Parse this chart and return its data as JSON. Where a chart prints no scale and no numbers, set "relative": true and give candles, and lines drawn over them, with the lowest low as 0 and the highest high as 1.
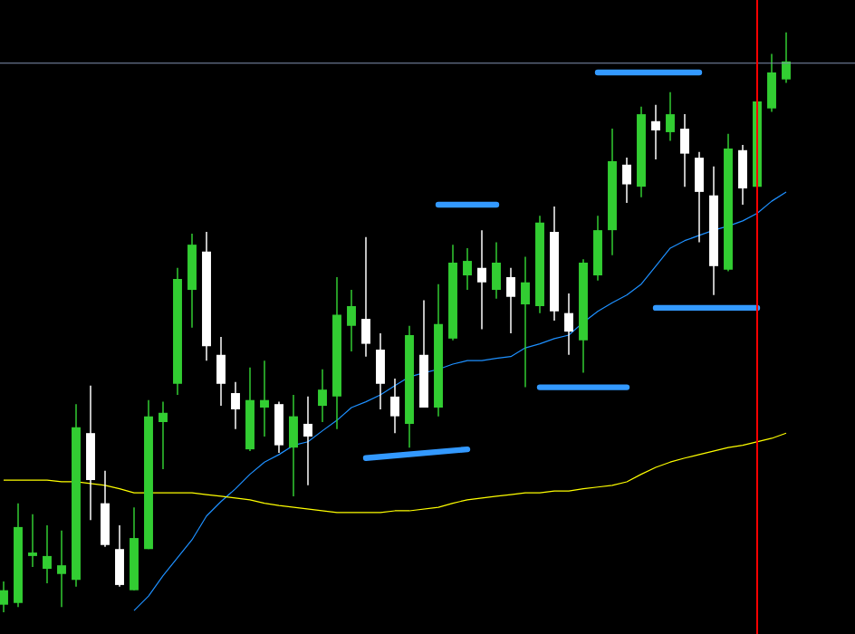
{
  "chart_data": {
    "type": "candlestick",
    "relative": true,
    "tick_labels": false,
    "categories": [
      null,
      null,
      null,
      null,
      null,
      null,
      null,
      null,
      null,
      null,
      null,
      null,
      null,
      null,
      null,
      null,
      null,
      null,
      null,
      null,
      null,
      null,
      null,
      null,
      null,
      null,
      null,
      null,
      null,
      null,
      null,
      null,
      null,
      null,
      null,
      null,
      null,
      null,
      null,
      null,
      null,
      null,
      null,
      null,
      null,
      null,
      null,
      null,
      null,
      null,
      null,
      null,
      null,
      null,
      null
    ],
    "ohlc": [
      [
        0.013,
        0.053,
        0,
        0.038
      ],
      [
        0.016,
        0.188,
        0.009,
        0.147
      ],
      [
        0.097,
        0.169,
        0.078,
        0.103
      ],
      [
        0.075,
        0.15,
        0.05,
        0.097
      ],
      [
        0.066,
        0.141,
        0.009,
        0.081
      ],
      [
        0.056,
        0.359,
        0.044,
        0.319
      ],
      [
        0.309,
        0.391,
        0.159,
        0.228
      ],
      [
        0.188,
        0.244,
        0.113,
        0.116
      ],
      [
        0.109,
        0.15,
        0.044,
        0.047
      ],
      [
        0.038,
        0.181,
        0.038,
        0.128
      ],
      [
        0.109,
        0.366,
        0.109,
        0.338
      ],
      [
        0.328,
        0.363,
        0.247,
        0.344
      ],
      [
        0.394,
        0.594,
        0.375,
        0.575
      ],
      [
        0.556,
        0.653,
        0.491,
        0.634
      ],
      [
        0.622,
        0.656,
        0.434,
        0.459
      ],
      [
        0.444,
        0.475,
        0.356,
        0.394
      ],
      [
        0.378,
        0.397,
        0.316,
        0.35
      ],
      [
        0.281,
        0.422,
        0.278,
        0.366
      ],
      [
        0.353,
        0.434,
        0.303,
        0.366
      ],
      [
        0.359,
        0.363,
        0.275,
        0.288
      ],
      [
        0.284,
        0.375,
        0.2,
        0.338
      ],
      [
        0.325,
        0.372,
        0.219,
        0.303
      ],
      [
        0.356,
        0.419,
        0.328,
        0.384
      ],
      [
        0.372,
        0.578,
        0.316,
        0.513
      ],
      [
        0.494,
        0.556,
        0.45,
        0.528
      ],
      [
        0.506,
        0.647,
        0.441,
        0.463
      ],
      [
        0.453,
        0.481,
        0.35,
        0.394
      ],
      [
        0.372,
        0.403,
        0.309,
        0.338
      ],
      [
        0.325,
        0.494,
        0.284,
        0.478
      ],
      [
        0.444,
        0.538,
        0.353,
        0.353
      ],
      [
        0.353,
        0.566,
        0.338,
        0.497
      ],
      [
        0.472,
        0.634,
        0.469,
        0.603
      ],
      [
        0.581,
        0.628,
        0.556,
        0.606
      ],
      [
        0.594,
        0.659,
        0.488,
        0.569
      ],
      [
        0.556,
        0.638,
        0.541,
        0.603
      ],
      [
        0.578,
        0.594,
        0.481,
        0.544
      ],
      [
        0.531,
        0.613,
        0.388,
        0.569
      ],
      [
        0.528,
        0.684,
        0.516,
        0.672
      ],
      [
        0.656,
        0.7,
        0.503,
        0.519
      ],
      [
        0.516,
        0.55,
        0.444,
        0.484
      ],
      [
        0.469,
        0.609,
        0.413,
        0.603
      ],
      [
        0.581,
        0.684,
        0.572,
        0.659
      ],
      [
        0.659,
        0.834,
        0.616,
        0.778
      ],
      [
        0.772,
        0.784,
        0.706,
        0.738
      ],
      [
        0.734,
        0.872,
        0.716,
        0.859
      ],
      [
        0.847,
        0.875,
        0.781,
        0.831
      ],
      [
        0.828,
        0.897,
        0.813,
        0.859
      ],
      [
        0.834,
        0.859,
        0.734,
        0.791
      ],
      [
        0.784,
        0.794,
        0.638,
        0.725
      ],
      [
        0.719,
        0.769,
        0.547,
        0.597
      ],
      [
        0.591,
        0.825,
        0.588,
        0.8
      ],
      [
        0.797,
        0.806,
        0.703,
        0.731
      ],
      [
        0.734,
        0.888,
        0.734,
        0.881
      ],
      [
        0.869,
        0.963,
        0.863,
        0.931
      ],
      [
        0.919,
        1,
        0.913,
        0.95
      ]
    ],
    "colors": [
      "#32cd32",
      "#32cd32",
      "#32cd32",
      "#32cd32",
      "#32cd32",
      "#32cd32",
      "#ffffff",
      "#ffffff",
      "#ffffff",
      "#32cd32",
      "#32cd32",
      "#32cd32",
      "#32cd32",
      "#32cd32",
      "#ffffff",
      "#ffffff",
      "#ffffff",
      "#32cd32",
      "#32cd32",
      "#ffffff",
      "#32cd32",
      "#ffffff",
      "#32cd32",
      "#32cd32",
      "#32cd32",
      "#ffffff",
      "#ffffff",
      "#ffffff",
      "#32cd32",
      "#ffffff",
      "#32cd32",
      "#32cd32",
      "#32cd32",
      "#ffffff",
      "#32cd32",
      "#ffffff",
      "#32cd32",
      "#32cd32",
      "#ffffff",
      "#ffffff",
      "#32cd32",
      "#32cd32",
      "#32cd32",
      "#ffffff",
      "#32cd32",
      "#ffffff",
      "#32cd32",
      "#ffffff",
      "#ffffff",
      "#ffffff",
      "#32cd32",
      "#ffffff",
      "#32cd32",
      "#32cd32",
      "#32cd32"
    ],
    "series": [
      {
        "type": "line",
        "color": "#1e90ff",
        "values": [
          null,
          null,
          null,
          null,
          null,
          null,
          null,
          null,
          null,
          0.003,
          0.028,
          0.063,
          0.094,
          0.125,
          0.166,
          0.191,
          0.213,
          0.238,
          0.259,
          0.272,
          0.288,
          0.294,
          0.313,
          0.331,
          0.353,
          0.363,
          0.375,
          0.391,
          0.406,
          0.413,
          0.419,
          0.428,
          0.434,
          0.434,
          0.438,
          0.441,
          0.456,
          0.463,
          0.472,
          0.478,
          0.5,
          0.519,
          0.534,
          0.547,
          0.566,
          0.597,
          0.628,
          0.641,
          0.65,
          0.659,
          0.666,
          0.675,
          0.688,
          0.709,
          0.725
        ]
      },
      {
        "type": "line",
        "color": "#ffff00",
        "values": [
          0.228,
          0.228,
          0.228,
          0.228,
          0.225,
          0.225,
          0.222,
          0.219,
          0.213,
          0.206,
          0.206,
          0.206,
          0.206,
          0.206,
          0.203,
          0.2,
          0.197,
          0.194,
          0.188,
          0.184,
          0.181,
          0.178,
          0.175,
          0.172,
          0.172,
          0.172,
          0.172,
          0.175,
          0.175,
          0.178,
          0.181,
          0.188,
          0.194,
          0.197,
          0.2,
          0.203,
          0.206,
          0.206,
          0.209,
          0.209,
          0.213,
          0.216,
          0.219,
          0.225,
          0.238,
          0.25,
          0.259,
          0.266,
          0.272,
          0.278,
          0.284,
          0.288,
          0.294,
          0.3,
          0.309
        ]
      },
      {
        "type": "line",
        "color": "#3399ff",
        "values": [
          null,
          null,
          null,
          null,
          null,
          null,
          null,
          null,
          null,
          null,
          null,
          null,
          null,
          null,
          null,
          null,
          null,
          null,
          null,
          null,
          null,
          null,
          null,
          null,
          null,
          0.266,
          null,
          null,
          null,
          null,
          null,
          null,
          0.281,
          null,
          null,
          null,
          null,
          null,
          null,
          null,
          null,
          null,
          null,
          null,
          null,
          null,
          null,
          null,
          null,
          null,
          null,
          null,
          null,
          null,
          null
        ]
      },
      {
        "type": "line",
        "color": "#3399ff",
        "values": [
          null,
          null,
          null,
          null,
          null,
          null,
          null,
          null,
          null,
          null,
          null,
          null,
          null,
          null,
          null,
          null,
          null,
          null,
          null,
          null,
          null,
          null,
          null,
          null,
          null,
          null,
          null,
          null,
          null,
          null,
          0.703,
          null,
          null,
          null,
          0.703,
          null,
          null,
          null,
          null,
          null,
          null,
          null,
          null,
          null,
          null,
          null,
          null,
          null,
          null,
          null,
          null,
          null,
          null,
          null,
          null
        ]
      },
      {
        "type": "line",
        "color": "#3399ff",
        "values": [
          null,
          null,
          null,
          null,
          null,
          null,
          null,
          null,
          null,
          null,
          null,
          null,
          null,
          null,
          null,
          null,
          null,
          null,
          null,
          null,
          null,
          null,
          null,
          null,
          null,
          null,
          null,
          null,
          null,
          null,
          null,
          null,
          null,
          null,
          null,
          null,
          null,
          0.388,
          null,
          null,
          null,
          null,
          null,
          0.388,
          null,
          null,
          null,
          null,
          null,
          null,
          null,
          null,
          null,
          null,
          null
        ]
      },
      {
        "type": "line",
        "color": "#3399ff",
        "values": [
          null,
          null,
          null,
          null,
          null,
          null,
          null,
          null,
          null,
          null,
          null,
          null,
          null,
          null,
          null,
          null,
          null,
          null,
          null,
          null,
          null,
          null,
          null,
          null,
          null,
          null,
          null,
          null,
          null,
          null,
          null,
          null,
          null,
          null,
          null,
          null,
          null,
          null,
          null,
          null,
          null,
          0.931,
          null,
          null,
          null,
          null,
          null,
          null,
          0.931,
          null,
          null,
          null,
          null,
          null,
          null
        ]
      },
      {
        "type": "line",
        "color": "#3399ff",
        "values": [
          null,
          null,
          null,
          null,
          null,
          null,
          null,
          null,
          null,
          null,
          null,
          null,
          null,
          null,
          null,
          null,
          null,
          null,
          null,
          null,
          null,
          null,
          null,
          null,
          null,
          null,
          null,
          null,
          null,
          null,
          null,
          null,
          null,
          null,
          null,
          null,
          null,
          null,
          null,
          null,
          null,
          null,
          null,
          null,
          null,
          0.525,
          null,
          null,
          null,
          null,
          null,
          null,
          0.525,
          null,
          null
        ]
      }
    ],
    "ref_lines": [
      {
        "axis": "y",
        "value": 0.947,
        "color": "#8090b0"
      }
    ]
  }
}
